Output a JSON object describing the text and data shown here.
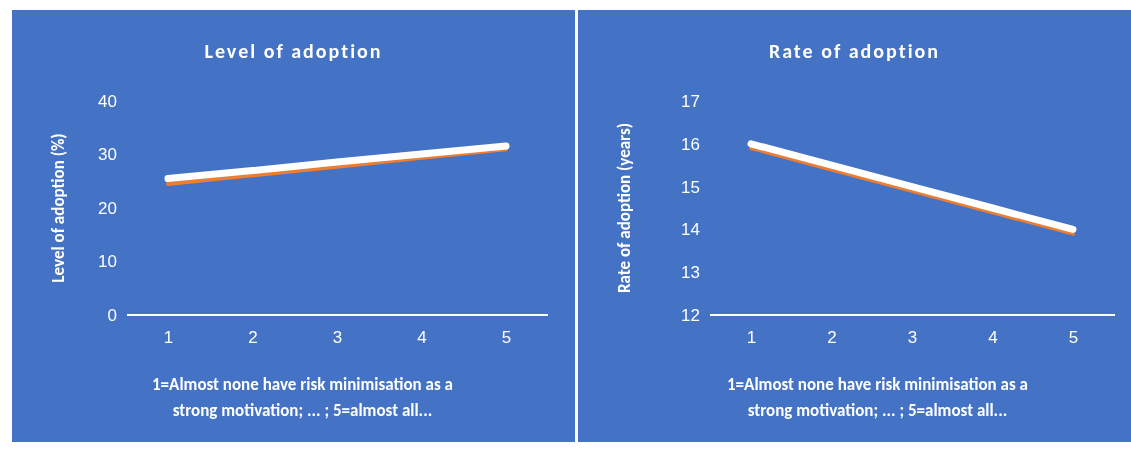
{
  "chart_data": [
    {
      "type": "line",
      "title": "Level of adoption",
      "ylabel": "Level of adoption (%)",
      "xlabel": "1=Almost none have risk minimisation as a strong motivation; ... ; 5=almost all...",
      "categories": [
        "1",
        "2",
        "3",
        "4",
        "5"
      ],
      "series": [
        {
          "color": "#ed7d31",
          "values": [
            24.5,
            26.1,
            27.7,
            29.4,
            31.0
          ]
        },
        {
          "color": "#ffffff",
          "values": [
            25.5,
            27.0,
            28.6,
            30.1,
            31.6
          ]
        }
      ],
      "ylim": [
        0,
        40
      ],
      "yticks": [
        0,
        10,
        20,
        30,
        40
      ],
      "grid": false,
      "marker": "none",
      "line_style": "solid"
    },
    {
      "type": "line",
      "title": "Rate of adoption",
      "ylabel": "Rate of adoption (years)",
      "xlabel": "1=Almost none have risk minimisation as a strong motivation; ... ; 5=almost all...",
      "categories": [
        "1",
        "2",
        "3",
        "4",
        "5"
      ],
      "series": [
        {
          "color": "#ed7d31",
          "values": [
            15.9,
            15.4,
            14.9,
            14.4,
            13.9
          ]
        },
        {
          "color": "#ffffff",
          "values": [
            16.0,
            15.5,
            15.0,
            14.5,
            14.0
          ]
        }
      ],
      "ylim": [
        12,
        17
      ],
      "yticks": [
        12,
        13,
        14,
        15,
        16,
        17
      ],
      "grid": false,
      "marker": "none",
      "line_style": "solid"
    }
  ]
}
